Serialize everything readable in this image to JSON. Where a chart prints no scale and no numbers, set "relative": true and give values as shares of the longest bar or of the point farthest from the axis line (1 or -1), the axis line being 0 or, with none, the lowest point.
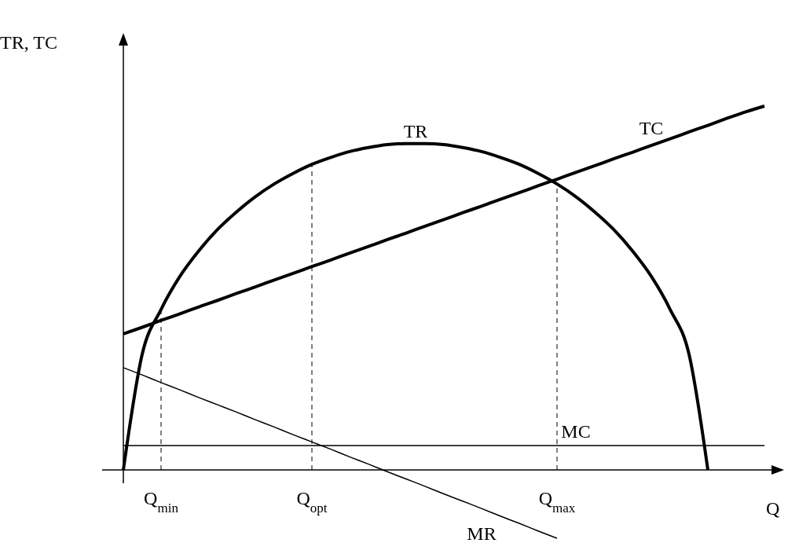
{
  "chart_data": {
    "type": "line",
    "relative": true,
    "xlabel": "Q",
    "ylabel": "TR, TC",
    "marker": "none",
    "line_style": "solid",
    "ref_lines": [
      {
        "axis": "x",
        "value": "Q$_{min}$",
        "line_style": "dashed",
        "color": "#000000"
      },
      {
        "axis": "x",
        "value": "Q$_{opt}$",
        "line_style": "dashed",
        "color": "#000000"
      },
      {
        "axis": "x",
        "value": "Q$_{max}$",
        "line_style": "dashed",
        "color": "#000000"
      }
    ],
    "categories": [
      null,
      null,
      "Q$_{min}$",
      null,
      null,
      null,
      null,
      null,
      null,
      null,
      "Q$_{opt}$",
      null,
      null,
      null,
      null,
      null,
      null,
      null,
      null,
      null,
      null,
      null,
      null,
      "Q$_{max}$",
      null,
      null,
      null,
      null,
      null,
      null,
      null,
      null,
      null,
      null,
      null
    ],
    "series": [
      {
        "name": "TR",
        "color": "#000000",
        "values": [
          0,
          0.318,
          0.441,
          0.532,
          0.602,
          0.661,
          0.709,
          0.751,
          0.786,
          0.815,
          0.84,
          0.859,
          0.875,
          0.886,
          0.894,
          0.897,
          0.897,
          0.894,
          0.886,
          0.875,
          0.859,
          0.84,
          0.815,
          0.786,
          0.751,
          0.709,
          0.661,
          0.602,
          0.532,
          0.441,
          0.318,
          0,
          null,
          null,
          null
        ]
      },
      {
        "name": "TC",
        "color": "#000000",
        "values": [
          0.374,
          0.392,
          0.411,
          0.429,
          0.448,
          0.466,
          0.485,
          0.503,
          0.522,
          0.54,
          0.559,
          0.577,
          0.596,
          0.614,
          0.633,
          0.651,
          0.67,
          0.688,
          0.707,
          0.725,
          0.744,
          0.762,
          0.781,
          0.799,
          0.818,
          0.836,
          0.855,
          0.873,
          0.892,
          0.91,
          0.929,
          0.947,
          0.966,
          0.984,
          1
        ]
      },
      {
        "name": "MC",
        "color": "#000000",
        "values": [
          0.067,
          0.067,
          0.067,
          0.067,
          0.067,
          0.067,
          0.067,
          0.067,
          0.067,
          0.067,
          0.067,
          0.067,
          0.067,
          0.067,
          0.067,
          0.067,
          0.067,
          0.067,
          0.067,
          0.067,
          0.067,
          0.067,
          0.067,
          0.067,
          0.067,
          0.067,
          0.067,
          0.067,
          0.067,
          0.067,
          0.067,
          0.067,
          0.067,
          0.067,
          0.067
        ]
      },
      {
        "name": "MR",
        "color": "#000000",
        "values": [
          0.281,
          0.261,
          0.24,
          0.22,
          0.199,
          0.179,
          0.159,
          0.138,
          0.118,
          0.097,
          0.077,
          0.057,
          0.036,
          0.016,
          -0.005,
          -0.025,
          -0.045,
          -0.066,
          -0.086,
          -0.106,
          -0.127,
          -0.147,
          -0.168,
          -0.188,
          null,
          null,
          null,
          null,
          null,
          null,
          null,
          null,
          null,
          null,
          null
        ]
      }
    ]
  }
}
